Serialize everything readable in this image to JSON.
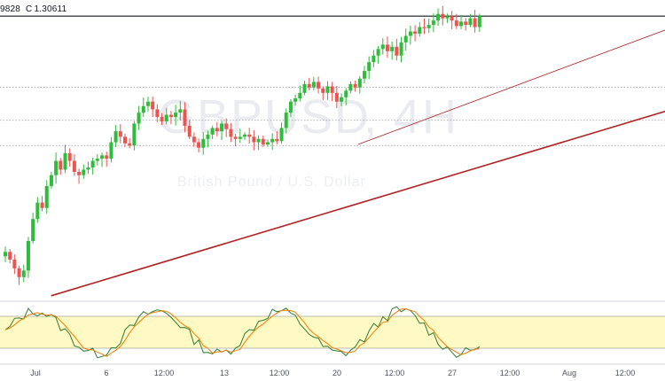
{
  "header": {
    "prev_value_fragment": "9828",
    "close_label": "C",
    "close_value": "1.30611"
  },
  "watermark": {
    "symbol": "GBPUSD",
    "interval_fragment": ", 4H",
    "subtitle": "British Pound / U.S. Dollar"
  },
  "colors": {
    "up": "#26a69a",
    "up_bright": "#2ebd3a",
    "down": "#ef5350",
    "trendline": "#b22222",
    "resistance": "#131722",
    "dotted": "#9598a1",
    "stoch_k": "#2e7d32",
    "stoch_d": "#f57c00",
    "stoch_band": "#fff9c4",
    "axis_text": "#50535e"
  },
  "chart_data": {
    "type": "candlestick",
    "price_range": [
      1.28,
      1.3065
    ],
    "time_axis": {
      "labels": [
        "Jul",
        "6",
        "12:00",
        "13",
        "12:00",
        "20",
        "12:00",
        "27",
        "12:00",
        "Aug",
        "12:00"
      ],
      "label_positions_in_bars": [
        0,
        15,
        27,
        39,
        51,
        63,
        75,
        87,
        99,
        111,
        123
      ],
      "total_bars": 130
    },
    "candles_close_sequence": [
      1.2845,
      1.2838,
      1.283,
      1.2822,
      1.2828,
      1.2855,
      1.2875,
      1.289,
      1.2885,
      1.2905,
      1.2915,
      1.2928,
      1.292,
      1.2935,
      1.2928,
      1.2918,
      1.2915,
      1.292,
      1.2922,
      1.2928,
      1.293,
      1.2933,
      1.293,
      1.2945,
      1.2955,
      1.295,
      1.2944,
      1.2942,
      1.2962,
      1.2972,
      1.2978,
      1.2982,
      1.2975,
      1.2968,
      1.2964,
      1.297,
      1.2968,
      1.2972,
      1.2975,
      1.296,
      1.295,
      1.2945,
      1.294,
      1.2948,
      1.2952,
      1.2958,
      1.2955,
      1.2962,
      1.2957,
      1.295,
      1.2948,
      1.295,
      1.2952,
      1.295,
      1.2945,
      1.2948,
      1.2943,
      1.2945,
      1.2948,
      1.2946,
      1.2958,
      1.2972,
      1.2982,
      1.2985,
      1.299,
      1.2998,
      1.2995,
      1.3,
      1.2994,
      1.299,
      1.2996,
      1.299,
      1.2982,
      1.2986,
      1.2992,
      1.2998,
      1.2995,
      1.3003,
      1.301,
      1.3018,
      1.3024,
      1.303,
      1.3034,
      1.3028,
      1.3032,
      1.3024,
      1.3036,
      1.3042,
      1.3046,
      1.3044,
      1.305,
      1.3049,
      1.3052,
      1.3056,
      1.3062,
      1.3058,
      1.306,
      1.3056,
      1.3051,
      1.3055,
      1.3052,
      1.3058,
      1.305,
      1.306
    ],
    "levels": {
      "resistance": 1.306,
      "dotted": [
        1.2995,
        1.2965,
        1.2942
      ]
    },
    "trendlines": [
      {
        "from": [
          5,
          1.2805
        ],
        "to": [
          130,
          1.2985
        ]
      },
      {
        "from": [
          65,
          1.2943
        ],
        "to": [
          130,
          1.3062
        ]
      }
    ],
    "stochastic": {
      "overbought": 80,
      "oversold": 20
    }
  }
}
